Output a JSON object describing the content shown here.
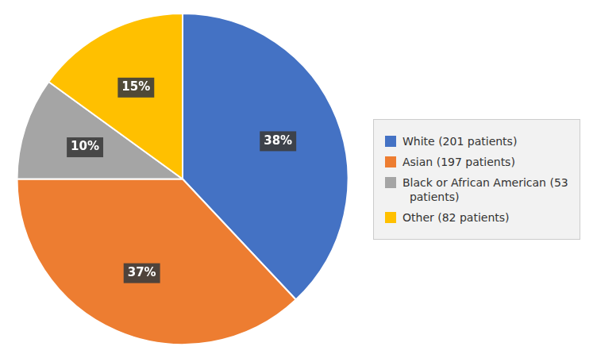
{
  "chart_data": {
    "type": "pie",
    "categories": [
      "White (201 patients)",
      "Asian (197 patients)",
      "Black or African American (53\n  patients)",
      "Other (82 patients)"
    ],
    "values": [
      38,
      37,
      10,
      15
    ],
    "value_labels": [
      "38%",
      "37%",
      "10%",
      "15%"
    ],
    "colors": [
      "#4472C4",
      "#ED7D31",
      "#A5A5A5",
      "#FFC000"
    ],
    "data_labels": true,
    "legend": "right"
  }
}
